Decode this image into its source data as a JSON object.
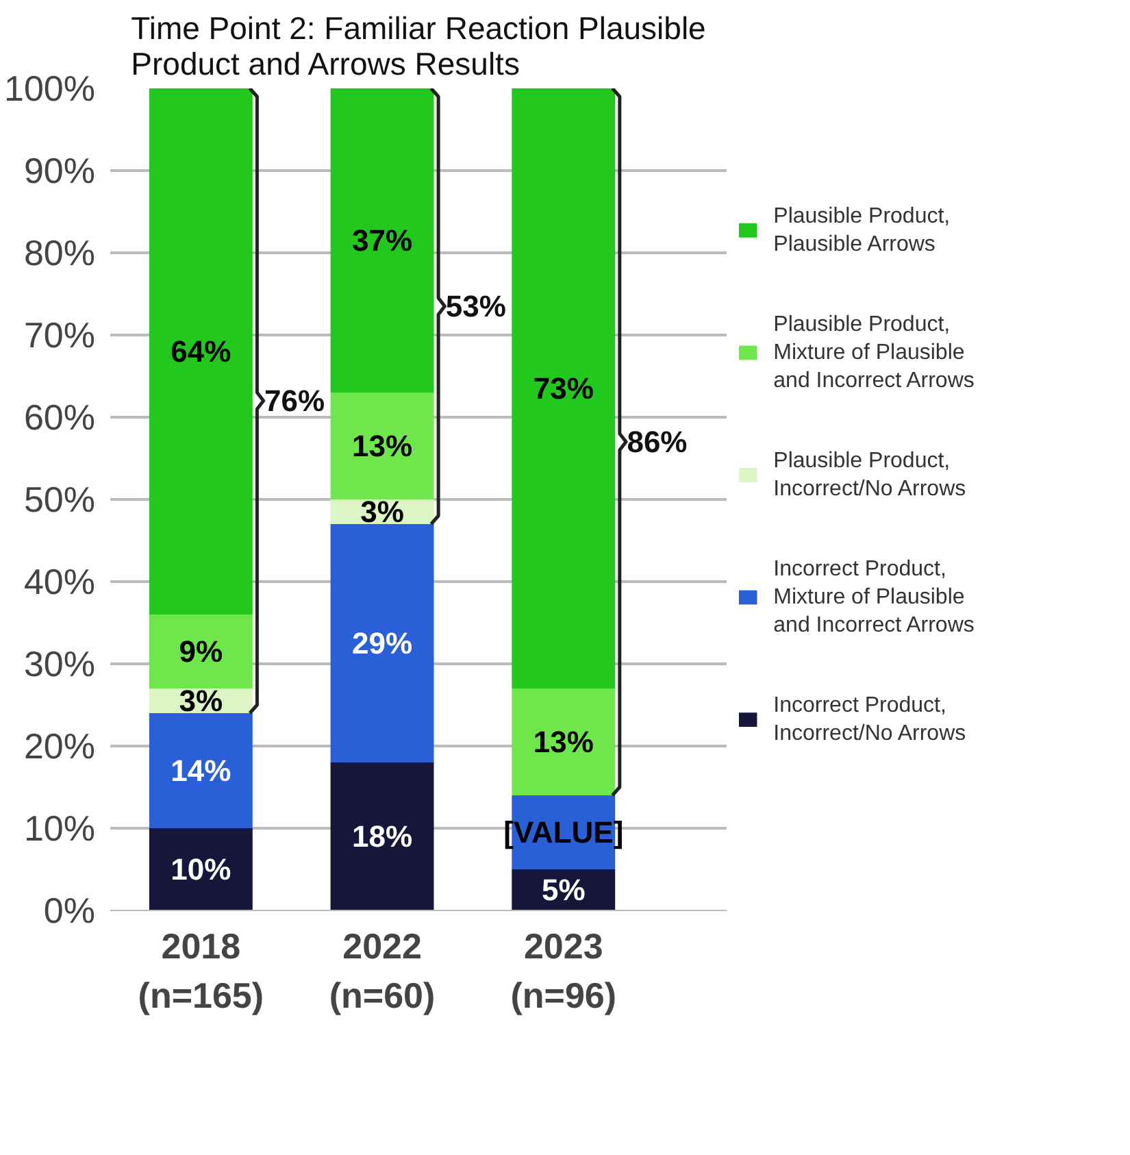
{
  "chart_data": {
    "type": "bar",
    "stacked": true,
    "title": "Time Point 2: Familiar Reaction Plausible\nProduct and Arrows Results",
    "categories": [
      "2018\n(n=165)",
      "2022\n(n=60)",
      "2023\n(n=96)"
    ],
    "series": [
      {
        "name": "Incorrect Product,\nIncorrect/No Arrows",
        "color": "#16163a",
        "values": [
          10,
          18,
          5
        ],
        "value_labels": [
          "10%",
          "18%",
          "5%"
        ]
      },
      {
        "name": "Incorrect Product,\nMixture of Plausible\nand Incorrect Arrows",
        "color": "#2a5fd8",
        "values": [
          14,
          29,
          9
        ],
        "value_labels": [
          "14%",
          "29%",
          "[VALUE]"
        ]
      },
      {
        "name": "Plausible Product,\nIncorrect/No Arrows",
        "color": "#dcf5c4",
        "values": [
          3,
          3,
          0
        ],
        "value_labels": [
          "3%",
          "3%",
          null
        ]
      },
      {
        "name": "Plausible Product,\nMixture of Plausible\nand Incorrect Arrows",
        "color": "#6ee64c",
        "values": [
          9,
          13,
          13
        ],
        "value_labels": [
          "9%",
          "13%",
          "13%"
        ]
      },
      {
        "name": "Plausible Product,\nPlausible Arrows",
        "color": "#22c81e",
        "values": [
          64,
          37,
          73
        ],
        "value_labels": [
          "64%",
          "37%",
          "73%"
        ]
      }
    ],
    "ylim": [
      0,
      100
    ],
    "yticks": [
      {
        "value": 0,
        "label": "0%"
      },
      {
        "value": 10,
        "label": "10%"
      },
      {
        "value": 20,
        "label": "20%"
      },
      {
        "value": 30,
        "label": "30%"
      },
      {
        "value": 40,
        "label": "40%"
      },
      {
        "value": 50,
        "label": "50%"
      },
      {
        "value": 60,
        "label": "60%"
      },
      {
        "value": 70,
        "label": "70%"
      },
      {
        "value": 80,
        "label": "80%"
      },
      {
        "value": 90,
        "label": "90%"
      },
      {
        "value": 100,
        "label": "100%"
      }
    ],
    "annotations": [
      "76%",
      "53%",
      "86%"
    ],
    "grid": "y",
    "legend": "right"
  }
}
